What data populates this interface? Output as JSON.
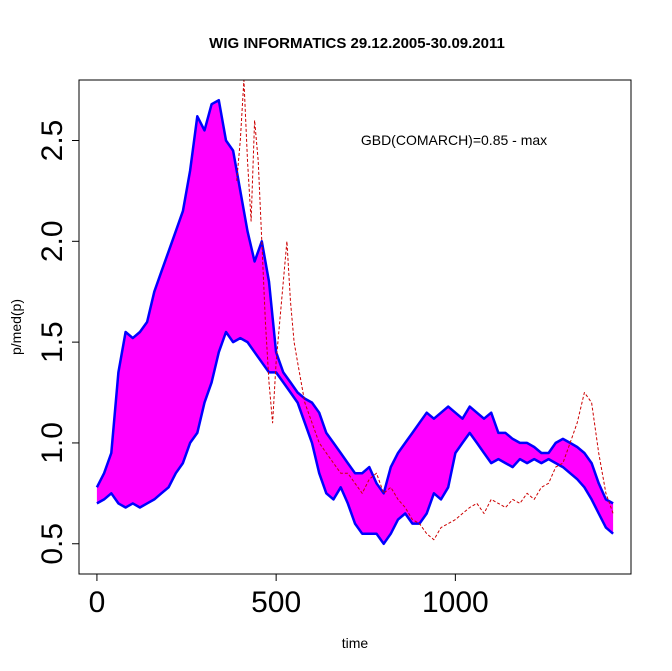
{
  "chart_data": {
    "type": "line",
    "title": "WIG INFORMATICS 29.12.2005-30.09.2011",
    "xlabel": "time",
    "ylabel": "p/med(p)",
    "annotation": "GBD(COMARCH)=0.85 - max",
    "xlim": [
      -50,
      1490
    ],
    "ylim": [
      0.35,
      2.8
    ],
    "xticks": [
      0,
      500,
      1000
    ],
    "xtick_labels": [
      "0",
      "500",
      "1000"
    ],
    "yticks": [
      0.5,
      1.0,
      1.5,
      2.0,
      2.5
    ],
    "ytick_labels": [
      "0.5",
      "1.0",
      "1.5",
      "2.0",
      "2.5"
    ],
    "colors": {
      "band_fill": "#ff00ff",
      "band_edge": "#0000ff",
      "comarch": "#cc0000"
    },
    "series": [
      {
        "name": "upper envelope",
        "x": [
          0,
          20,
          40,
          60,
          80,
          100,
          120,
          140,
          160,
          180,
          200,
          220,
          240,
          260,
          280,
          300,
          320,
          340,
          360,
          380,
          400,
          420,
          440,
          460,
          480,
          500,
          520,
          540,
          560,
          580,
          600,
          620,
          640,
          660,
          680,
          700,
          720,
          740,
          760,
          780,
          800,
          820,
          840,
          860,
          880,
          900,
          920,
          940,
          960,
          980,
          1000,
          1020,
          1040,
          1060,
          1080,
          1100,
          1120,
          1140,
          1160,
          1180,
          1200,
          1220,
          1240,
          1260,
          1280,
          1300,
          1320,
          1340,
          1360,
          1380,
          1400,
          1420,
          1440
        ],
        "values": [
          0.78,
          0.85,
          0.95,
          1.35,
          1.55,
          1.52,
          1.55,
          1.6,
          1.75,
          1.85,
          1.95,
          2.05,
          2.15,
          2.35,
          2.62,
          2.55,
          2.68,
          2.7,
          2.5,
          2.45,
          2.25,
          2.05,
          1.9,
          2.0,
          1.8,
          1.45,
          1.35,
          1.3,
          1.25,
          1.22,
          1.2,
          1.15,
          1.05,
          1.0,
          0.95,
          0.9,
          0.85,
          0.85,
          0.88,
          0.8,
          0.75,
          0.88,
          0.95,
          1.0,
          1.05,
          1.1,
          1.15,
          1.12,
          1.15,
          1.18,
          1.15,
          1.12,
          1.18,
          1.15,
          1.12,
          1.15,
          1.05,
          1.05,
          1.02,
          1.0,
          1.0,
          0.98,
          0.95,
          0.95,
          1.0,
          1.02,
          1.0,
          0.98,
          0.95,
          0.9,
          0.8,
          0.72,
          0.7
        ]
      },
      {
        "name": "lower envelope",
        "x": [
          0,
          20,
          40,
          60,
          80,
          100,
          120,
          140,
          160,
          180,
          200,
          220,
          240,
          260,
          280,
          300,
          320,
          340,
          360,
          380,
          400,
          420,
          440,
          460,
          480,
          500,
          520,
          540,
          560,
          580,
          600,
          620,
          640,
          660,
          680,
          700,
          720,
          740,
          760,
          780,
          800,
          820,
          840,
          860,
          880,
          900,
          920,
          940,
          960,
          980,
          1000,
          1020,
          1040,
          1060,
          1080,
          1100,
          1120,
          1140,
          1160,
          1180,
          1200,
          1220,
          1240,
          1260,
          1280,
          1300,
          1320,
          1340,
          1360,
          1380,
          1400,
          1420,
          1440
        ],
        "values": [
          0.7,
          0.72,
          0.75,
          0.7,
          0.68,
          0.7,
          0.68,
          0.7,
          0.72,
          0.75,
          0.78,
          0.85,
          0.9,
          1.0,
          1.05,
          1.2,
          1.3,
          1.45,
          1.55,
          1.5,
          1.52,
          1.5,
          1.45,
          1.4,
          1.35,
          1.35,
          1.3,
          1.25,
          1.2,
          1.1,
          1.0,
          0.85,
          0.75,
          0.72,
          0.78,
          0.7,
          0.6,
          0.55,
          0.55,
          0.55,
          0.5,
          0.55,
          0.62,
          0.65,
          0.6,
          0.6,
          0.65,
          0.75,
          0.72,
          0.78,
          0.95,
          1.0,
          1.05,
          1.0,
          0.95,
          0.9,
          0.92,
          0.9,
          0.88,
          0.92,
          0.9,
          0.92,
          0.9,
          0.92,
          0.9,
          0.88,
          0.85,
          0.82,
          0.78,
          0.72,
          0.65,
          0.58,
          0.55
        ]
      },
      {
        "name": "COMARCH",
        "style": "dashed",
        "x": [
          390,
          400,
          410,
          420,
          430,
          440,
          450,
          460,
          470,
          480,
          490,
          500,
          510,
          520,
          530,
          540,
          550,
          560,
          580,
          600,
          620,
          640,
          660,
          680,
          700,
          720,
          740,
          760,
          780,
          800,
          820,
          840,
          860,
          880,
          900,
          920,
          940,
          960,
          980,
          1000,
          1020,
          1040,
          1060,
          1080,
          1100,
          1120,
          1140,
          1160,
          1180,
          1200,
          1220,
          1240,
          1260,
          1280,
          1300,
          1320,
          1340,
          1360,
          1380,
          1400,
          1420,
          1440
        ],
        "values": [
          2.3,
          2.5,
          2.8,
          2.4,
          2.1,
          2.6,
          2.4,
          2.0,
          1.6,
          1.3,
          1.1,
          1.4,
          1.6,
          1.8,
          2.0,
          1.7,
          1.5,
          1.4,
          1.2,
          1.1,
          1.0,
          0.95,
          0.9,
          0.85,
          0.85,
          0.8,
          0.75,
          0.82,
          0.85,
          0.75,
          0.78,
          0.72,
          0.68,
          0.62,
          0.6,
          0.55,
          0.52,
          0.58,
          0.6,
          0.62,
          0.65,
          0.68,
          0.7,
          0.65,
          0.72,
          0.7,
          0.68,
          0.72,
          0.7,
          0.75,
          0.72,
          0.78,
          0.8,
          0.88,
          0.9,
          1.0,
          1.1,
          1.25,
          1.2,
          0.95,
          0.75,
          0.65
        ]
      }
    ]
  }
}
